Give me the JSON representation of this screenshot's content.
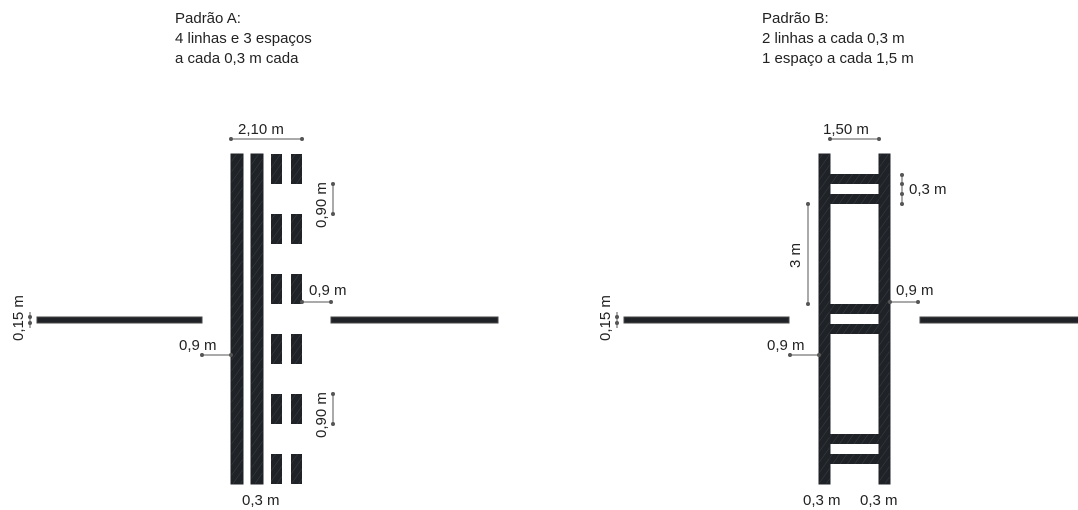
{
  "pattern_a": {
    "title": [
      "Padrão A:",
      "4 linhas e 3 espaços",
      "a cada 0,3 m cada"
    ],
    "dims": {
      "width": "2,10 m",
      "block_top": "0,90 m",
      "offset_right": "0,9 m",
      "offset_left": "0,9 m",
      "block_bottom": "0,90 m",
      "line_width": "0,15 m",
      "spacing": "0,3 m"
    }
  },
  "pattern_b": {
    "title": [
      "Padrão B:",
      "2 linhas a cada 0,3 m",
      "1 espaço a cada 1,5 m"
    ],
    "dims": {
      "width": "1,50 m",
      "bar": "0,3 m",
      "gap": "3 m",
      "offset_right": "0,9 m",
      "offset_left": "0,9 m",
      "line_width": "0,15 m",
      "spacing_left": "0,3 m",
      "spacing_right": "0,3 m"
    }
  },
  "colors": {
    "stroke": "#1f2328",
    "line": "#555555"
  }
}
